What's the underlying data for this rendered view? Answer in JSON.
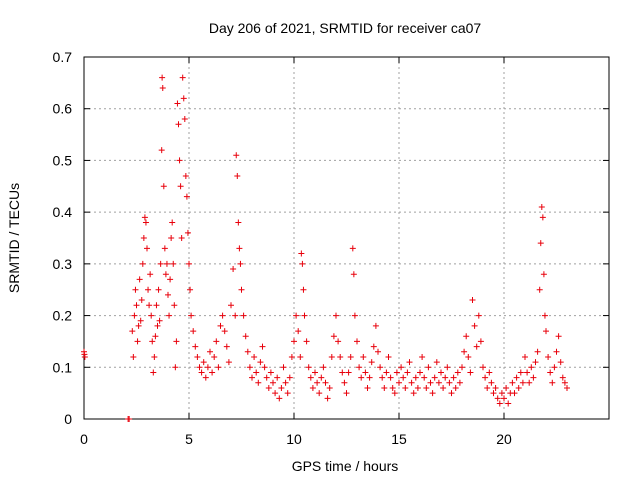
{
  "chart_data": {
    "type": "scatter",
    "title": "Day 206 of 2021, SRMTID for receiver ca07",
    "xlabel": "GPS time / hours",
    "ylabel": "SRMTID / TECUs",
    "xlim": [
      0,
      25
    ],
    "ylim": [
      0,
      0.7
    ],
    "xticks": [
      0,
      5,
      10,
      15,
      20
    ],
    "yticks": [
      0,
      0.1,
      0.2,
      0.3,
      0.4,
      0.5,
      0.6,
      0.7
    ],
    "xtick_labels": [
      "0",
      "5",
      "10",
      "15",
      "20"
    ],
    "ytick_labels": [
      "0",
      "0.1",
      "0.2",
      "0.3",
      "0.4",
      "0.5",
      "0.6",
      "0.7"
    ],
    "grid": true,
    "series_color": "#e8000b",
    "marker": "plus",
    "series": [
      {
        "name": "SRMTID",
        "points": [
          [
            0.0,
            0.13
          ],
          [
            0.02,
            0.125
          ],
          [
            0.04,
            0.12
          ],
          [
            2.1,
            0.0
          ],
          [
            2.15,
            0.0
          ],
          [
            2.3,
            0.17
          ],
          [
            2.35,
            0.12
          ],
          [
            2.4,
            0.2
          ],
          [
            2.45,
            0.25
          ],
          [
            2.5,
            0.22
          ],
          [
            2.55,
            0.15
          ],
          [
            2.6,
            0.18
          ],
          [
            2.65,
            0.27
          ],
          [
            2.7,
            0.19
          ],
          [
            2.75,
            0.23
          ],
          [
            2.8,
            0.3
          ],
          [
            2.85,
            0.35
          ],
          [
            2.9,
            0.39
          ],
          [
            2.95,
            0.38
          ],
          [
            3.0,
            0.33
          ],
          [
            3.05,
            0.25
          ],
          [
            3.1,
            0.22
          ],
          [
            3.15,
            0.28
          ],
          [
            3.2,
            0.2
          ],
          [
            3.25,
            0.15
          ],
          [
            3.3,
            0.09
          ],
          [
            3.35,
            0.12
          ],
          [
            3.4,
            0.16
          ],
          [
            3.45,
            0.22
          ],
          [
            3.5,
            0.18
          ],
          [
            3.55,
            0.25
          ],
          [
            3.6,
            0.19
          ],
          [
            3.65,
            0.3
          ],
          [
            3.7,
            0.52
          ],
          [
            3.72,
            0.66
          ],
          [
            3.75,
            0.64
          ],
          [
            3.8,
            0.45
          ],
          [
            3.85,
            0.33
          ],
          [
            3.9,
            0.28
          ],
          [
            3.95,
            0.3
          ],
          [
            4.0,
            0.24
          ],
          [
            4.05,
            0.2
          ],
          [
            4.1,
            0.27
          ],
          [
            4.15,
            0.35
          ],
          [
            4.2,
            0.38
          ],
          [
            4.25,
            0.3
          ],
          [
            4.3,
            0.22
          ],
          [
            4.35,
            0.1
          ],
          [
            4.4,
            0.15
          ],
          [
            4.45,
            0.61
          ],
          [
            4.5,
            0.57
          ],
          [
            4.55,
            0.5
          ],
          [
            4.6,
            0.45
          ],
          [
            4.65,
            0.35
          ],
          [
            4.7,
            0.66
          ],
          [
            4.75,
            0.62
          ],
          [
            4.8,
            0.58
          ],
          [
            4.85,
            0.47
          ],
          [
            4.9,
            0.43
          ],
          [
            4.95,
            0.36
          ],
          [
            5.0,
            0.3
          ],
          [
            5.05,
            0.25
          ],
          [
            5.1,
            0.2
          ],
          [
            5.2,
            0.17
          ],
          [
            5.3,
            0.14
          ],
          [
            5.4,
            0.12
          ],
          [
            5.5,
            0.1
          ],
          [
            5.6,
            0.09
          ],
          [
            5.7,
            0.11
          ],
          [
            5.8,
            0.08
          ],
          [
            5.9,
            0.1
          ],
          [
            6.0,
            0.13
          ],
          [
            6.1,
            0.09
          ],
          [
            6.2,
            0.12
          ],
          [
            6.3,
            0.15
          ],
          [
            6.4,
            0.1
          ],
          [
            6.5,
            0.18
          ],
          [
            6.6,
            0.2
          ],
          [
            6.7,
            0.17
          ],
          [
            6.8,
            0.14
          ],
          [
            6.9,
            0.11
          ],
          [
            7.0,
            0.22
          ],
          [
            7.1,
            0.29
          ],
          [
            7.2,
            0.2
          ],
          [
            7.25,
            0.51
          ],
          [
            7.3,
            0.47
          ],
          [
            7.35,
            0.38
          ],
          [
            7.4,
            0.33
          ],
          [
            7.45,
            0.3
          ],
          [
            7.5,
            0.25
          ],
          [
            7.6,
            0.2
          ],
          [
            7.7,
            0.16
          ],
          [
            7.8,
            0.13
          ],
          [
            7.9,
            0.1
          ],
          [
            8.0,
            0.08
          ],
          [
            8.1,
            0.12
          ],
          [
            8.2,
            0.09
          ],
          [
            8.3,
            0.07
          ],
          [
            8.4,
            0.11
          ],
          [
            8.5,
            0.14
          ],
          [
            8.6,
            0.1
          ],
          [
            8.7,
            0.08
          ],
          [
            8.8,
            0.06
          ],
          [
            8.9,
            0.09
          ],
          [
            9.0,
            0.07
          ],
          [
            9.1,
            0.05
          ],
          [
            9.2,
            0.08
          ],
          [
            9.3,
            0.04
          ],
          [
            9.4,
            0.06
          ],
          [
            9.5,
            0.1
          ],
          [
            9.6,
            0.07
          ],
          [
            9.7,
            0.05
          ],
          [
            9.8,
            0.08
          ],
          [
            9.9,
            0.12
          ],
          [
            10.0,
            0.15
          ],
          [
            10.1,
            0.2
          ],
          [
            10.2,
            0.17
          ],
          [
            10.3,
            0.12
          ],
          [
            10.35,
            0.32
          ],
          [
            10.4,
            0.3
          ],
          [
            10.45,
            0.25
          ],
          [
            10.5,
            0.2
          ],
          [
            10.6,
            0.15
          ],
          [
            10.7,
            0.1
          ],
          [
            10.8,
            0.08
          ],
          [
            10.9,
            0.06
          ],
          [
            11.0,
            0.09
          ],
          [
            11.1,
            0.07
          ],
          [
            11.2,
            0.05
          ],
          [
            11.3,
            0.08
          ],
          [
            11.4,
            0.1
          ],
          [
            11.5,
            0.07
          ],
          [
            11.6,
            0.04
          ],
          [
            11.7,
            0.06
          ],
          [
            11.8,
            0.12
          ],
          [
            11.9,
            0.16
          ],
          [
            12.0,
            0.2
          ],
          [
            12.1,
            0.15
          ],
          [
            12.2,
            0.12
          ],
          [
            12.3,
            0.09
          ],
          [
            12.4,
            0.07
          ],
          [
            12.5,
            0.05
          ],
          [
            12.6,
            0.09
          ],
          [
            12.7,
            0.12
          ],
          [
            12.8,
            0.33
          ],
          [
            12.85,
            0.28
          ],
          [
            12.9,
            0.2
          ],
          [
            13.0,
            0.15
          ],
          [
            13.1,
            0.1
          ],
          [
            13.2,
            0.08
          ],
          [
            13.3,
            0.12
          ],
          [
            13.4,
            0.09
          ],
          [
            13.5,
            0.06
          ],
          [
            13.6,
            0.08
          ],
          [
            13.7,
            0.11
          ],
          [
            13.8,
            0.14
          ],
          [
            13.9,
            0.18
          ],
          [
            14.0,
            0.13
          ],
          [
            14.1,
            0.1
          ],
          [
            14.2,
            0.08
          ],
          [
            14.3,
            0.06
          ],
          [
            14.4,
            0.09
          ],
          [
            14.5,
            0.12
          ],
          [
            14.6,
            0.08
          ],
          [
            14.7,
            0.06
          ],
          [
            14.8,
            0.05
          ],
          [
            14.9,
            0.09
          ],
          [
            15.0,
            0.07
          ],
          [
            15.1,
            0.1
          ],
          [
            15.2,
            0.08
          ],
          [
            15.3,
            0.06
          ],
          [
            15.4,
            0.09
          ],
          [
            15.5,
            0.11
          ],
          [
            15.6,
            0.07
          ],
          [
            15.7,
            0.05
          ],
          [
            15.8,
            0.08
          ],
          [
            15.9,
            0.06
          ],
          [
            16.0,
            0.09
          ],
          [
            16.1,
            0.12
          ],
          [
            16.2,
            0.08
          ],
          [
            16.3,
            0.06
          ],
          [
            16.4,
            0.1
          ],
          [
            16.5,
            0.07
          ],
          [
            16.6,
            0.05
          ],
          [
            16.7,
            0.08
          ],
          [
            16.8,
            0.11
          ],
          [
            16.9,
            0.07
          ],
          [
            17.0,
            0.09
          ],
          [
            17.1,
            0.06
          ],
          [
            17.2,
            0.08
          ],
          [
            17.3,
            0.1
          ],
          [
            17.4,
            0.07
          ],
          [
            17.5,
            0.05
          ],
          [
            17.6,
            0.08
          ],
          [
            17.7,
            0.06
          ],
          [
            17.8,
            0.09
          ],
          [
            17.9,
            0.07
          ],
          [
            18.0,
            0.1
          ],
          [
            18.1,
            0.13
          ],
          [
            18.2,
            0.16
          ],
          [
            18.3,
            0.12
          ],
          [
            18.4,
            0.09
          ],
          [
            18.5,
            0.23
          ],
          [
            18.6,
            0.18
          ],
          [
            18.7,
            0.14
          ],
          [
            18.8,
            0.2
          ],
          [
            18.9,
            0.15
          ],
          [
            19.0,
            0.1
          ],
          [
            19.1,
            0.08
          ],
          [
            19.2,
            0.06
          ],
          [
            19.3,
            0.09
          ],
          [
            19.4,
            0.07
          ],
          [
            19.5,
            0.05
          ],
          [
            19.6,
            0.06
          ],
          [
            19.7,
            0.04
          ],
          [
            19.8,
            0.03
          ],
          [
            19.9,
            0.05
          ],
          [
            20.0,
            0.04
          ],
          [
            20.1,
            0.06
          ],
          [
            20.2,
            0.03
          ],
          [
            20.3,
            0.05
          ],
          [
            20.4,
            0.07
          ],
          [
            20.5,
            0.05
          ],
          [
            20.6,
            0.08
          ],
          [
            20.7,
            0.06
          ],
          [
            20.8,
            0.09
          ],
          [
            20.9,
            0.07
          ],
          [
            21.0,
            0.12
          ],
          [
            21.1,
            0.09
          ],
          [
            21.2,
            0.07
          ],
          [
            21.3,
            0.1
          ],
          [
            21.4,
            0.08
          ],
          [
            21.5,
            0.11
          ],
          [
            21.6,
            0.13
          ],
          [
            21.7,
            0.25
          ],
          [
            21.75,
            0.34
          ],
          [
            21.8,
            0.41
          ],
          [
            21.85,
            0.39
          ],
          [
            21.9,
            0.28
          ],
          [
            21.95,
            0.2
          ],
          [
            22.0,
            0.17
          ],
          [
            22.1,
            0.12
          ],
          [
            22.2,
            0.09
          ],
          [
            22.3,
            0.07
          ],
          [
            22.4,
            0.1
          ],
          [
            22.5,
            0.13
          ],
          [
            22.6,
            0.16
          ],
          [
            22.7,
            0.11
          ],
          [
            22.8,
            0.08
          ],
          [
            22.9,
            0.07
          ],
          [
            23.0,
            0.06
          ]
        ]
      }
    ]
  }
}
